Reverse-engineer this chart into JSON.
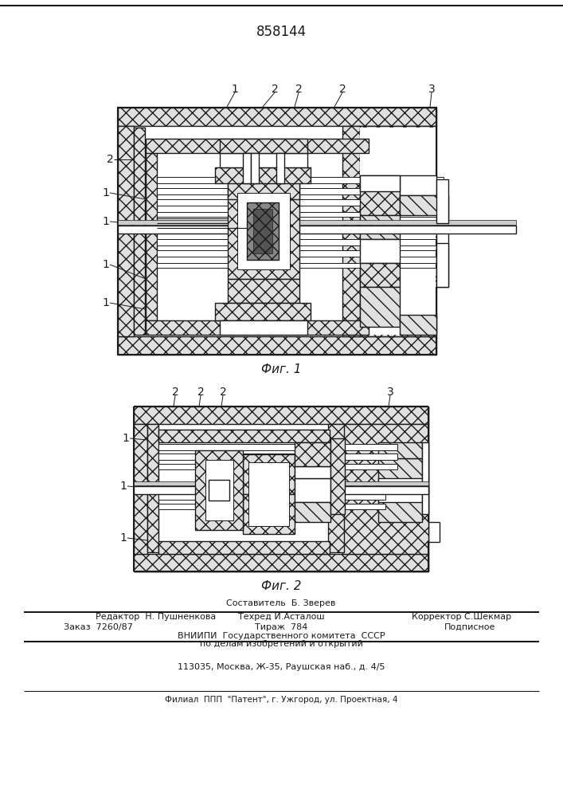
{
  "patent_number": "858144",
  "bg_color": "#ffffff",
  "line_color": "#1a1a1a",
  "fig1_caption": "Фиг. 1",
  "fig2_caption": "Фиг. 2",
  "footer_line0": "Составитель  Б. Зверев",
  "footer_line1": "Редактор  Н. Пушненкова",
  "footer_line1b": "Техред И.Асталош",
  "footer_line1c": "Корректор С.Шекмар",
  "footer_zakaz": "Заказ  7260/87",
  "footer_tirazh": "Тираж  784",
  "footer_podp": "Подписное",
  "footer_vniip1": "ВНИИПИ  Государственного комитета  СССР",
  "footer_vniip2": "по делам изобретений и открытий",
  "footer_addr": "113035, Москва, Ж-35, Раушская наб., д. 4/5",
  "footer_filial": "Филиал  ППП  \"Патент\", г. Ужгород, ул. Проектная, 4"
}
